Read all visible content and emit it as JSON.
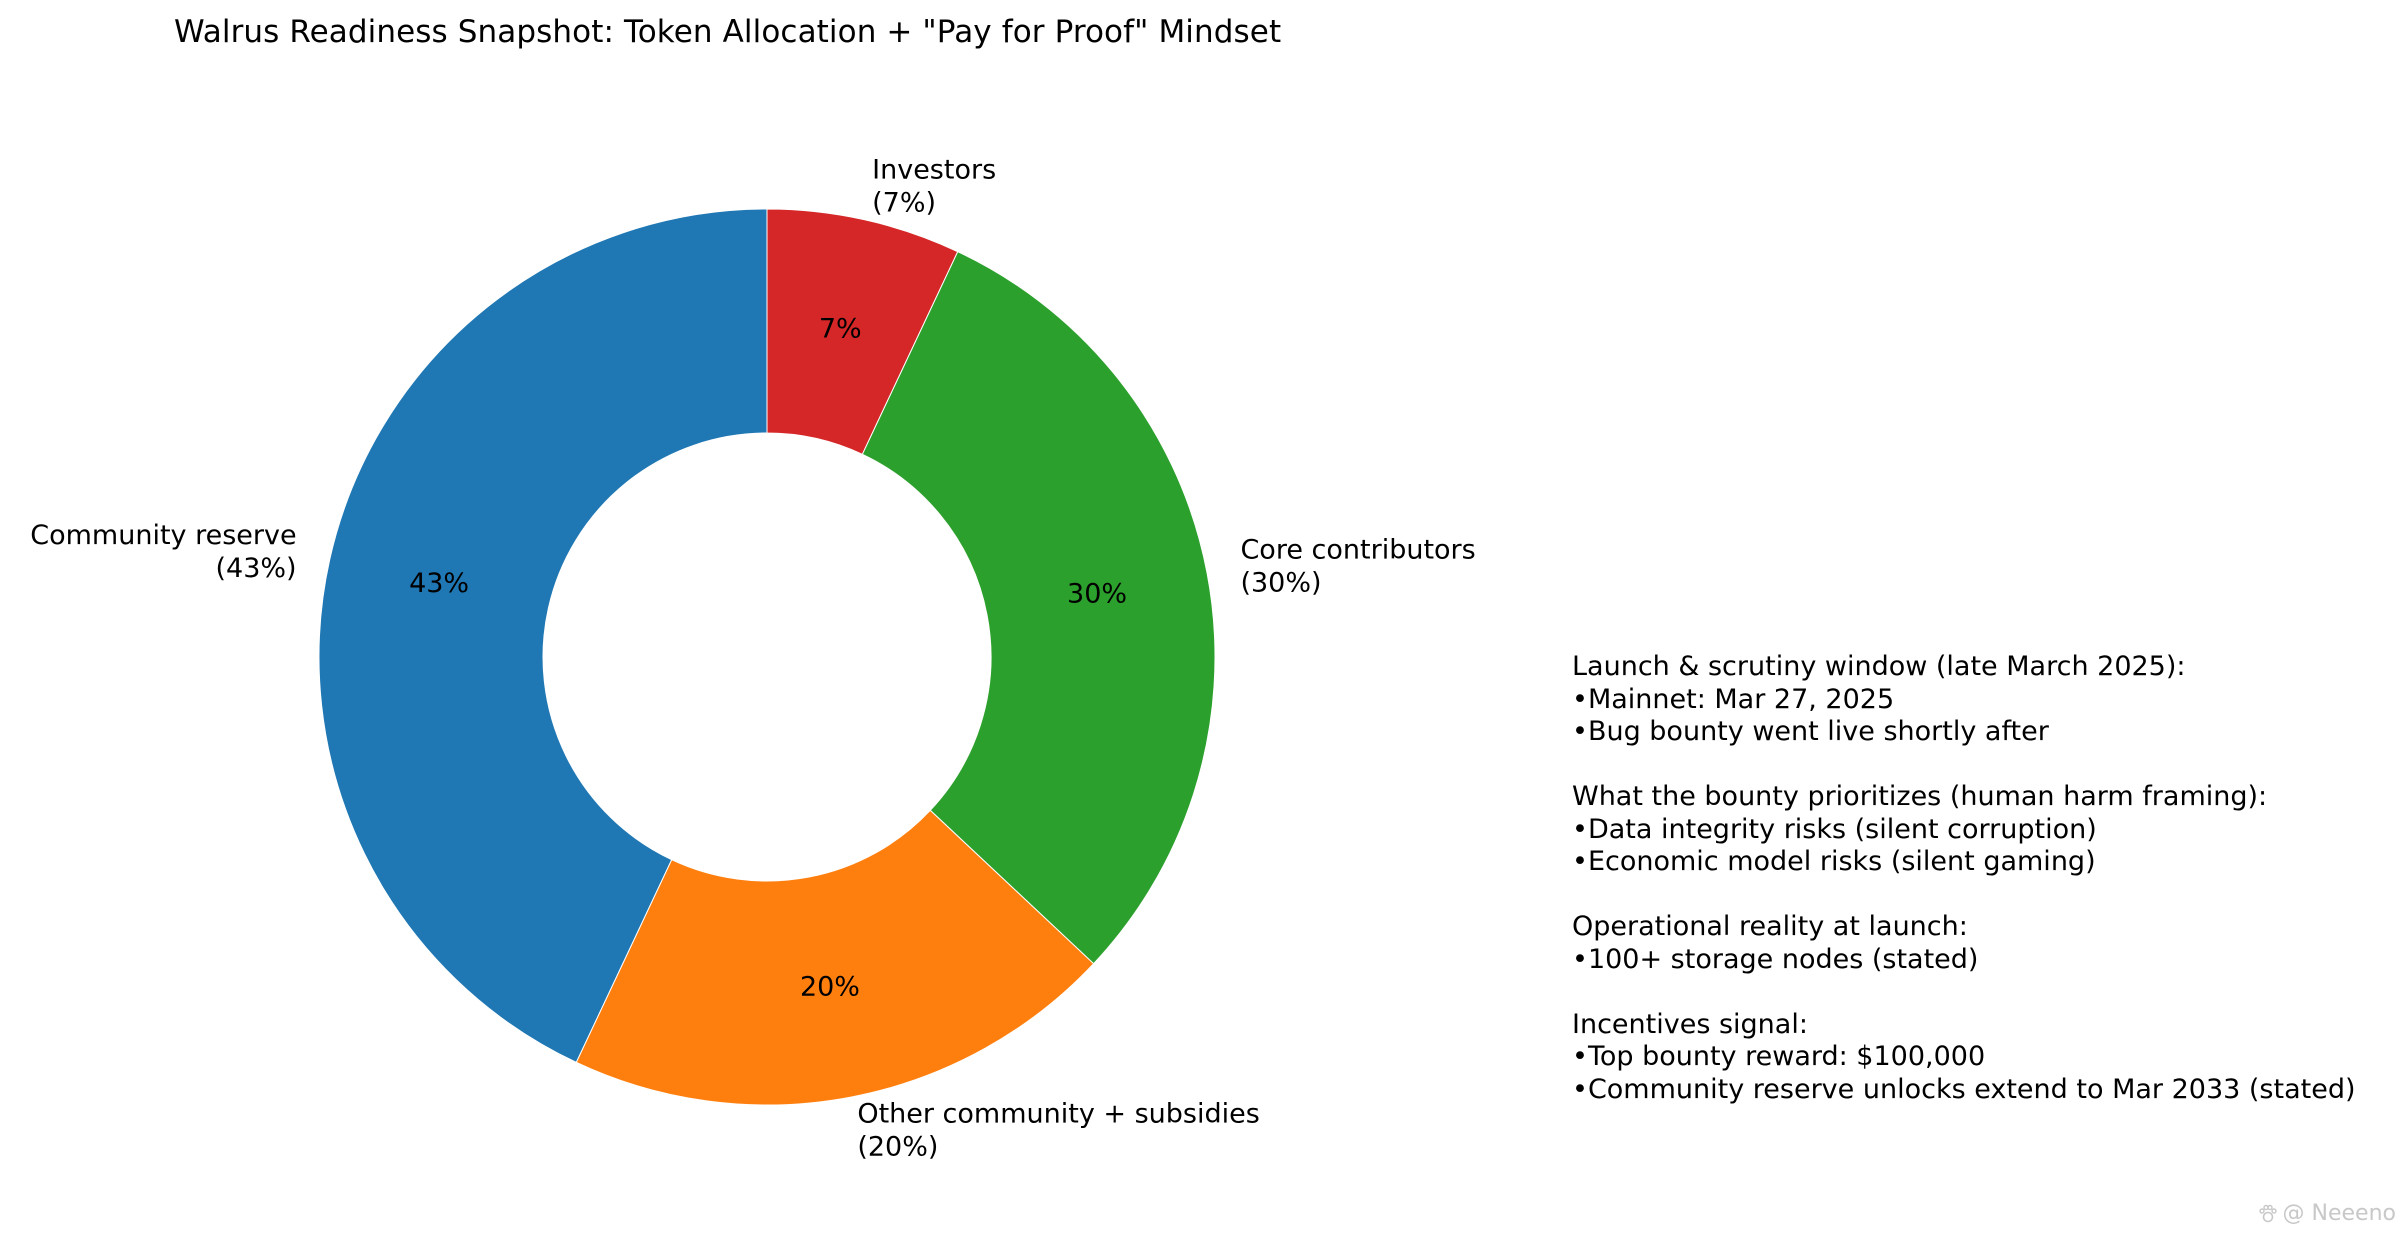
{
  "chart_data": {
    "type": "pie",
    "variant": "donut",
    "title": "Walrus Readiness Snapshot: Token Allocation + \"Pay for Proof\" Mindset",
    "start_angle_deg": 90,
    "direction": "clockwise",
    "slices": [
      {
        "label": "Investors",
        "label_pct": "(7%)",
        "value": 7,
        "pct_text": "7%",
        "color": "#d62728"
      },
      {
        "label": "Core contributors",
        "label_pct": "(30%)",
        "value": 30,
        "pct_text": "30%",
        "color": "#2ca02c"
      },
      {
        "label": "Other community + subsidies",
        "label_pct": "(20%)",
        "value": 20,
        "pct_text": "20%",
        "color": "#ff7f0e"
      },
      {
        "label": "Community reserve",
        "label_pct": "(43%)",
        "value": 43,
        "pct_text": "43%",
        "color": "#1f77b4"
      }
    ]
  },
  "notes": [
    {
      "heading": "Launch & scrutiny window (late March 2025):",
      "bullets": [
        "Mainnet: Mar 27, 2025",
        "Bug bounty went live shortly after"
      ]
    },
    {
      "heading": "What the bounty prioritizes (human harm framing):",
      "bullets": [
        "Data integrity risks (silent corruption)",
        "Economic model risks (silent gaming)"
      ]
    },
    {
      "heading": "Operational reality at launch:",
      "bullets": [
        "100+ storage nodes (stated)"
      ]
    },
    {
      "heading": "Incentives signal:",
      "bullets": [
        "Top bounty reward: $100,000",
        "Community reserve unlocks extend to Mar 2033 (stated)"
      ]
    }
  ],
  "watermark": {
    "text": "@ Neeeno",
    "icon": "paw-icon"
  }
}
